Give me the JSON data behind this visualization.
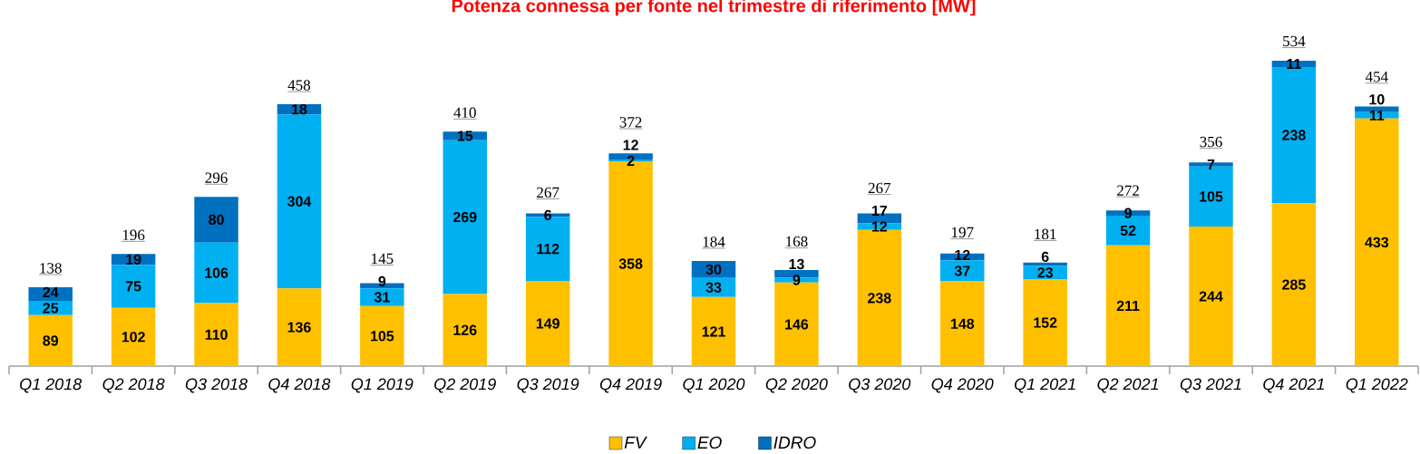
{
  "chart_data": {
    "type": "bar",
    "title": "Potenza connessa per fonte nel trimestre di riferimento [MW]",
    "categories": [
      "Q1 2018",
      "Q2 2018",
      "Q3 2018",
      "Q4 2018",
      "Q1 2019",
      "Q2 2019",
      "Q3 2019",
      "Q4 2019",
      "Q1 2020",
      "Q2 2020",
      "Q3 2020",
      "Q4 2020",
      "Q1 2021",
      "Q2 2021",
      "Q3 2021",
      "Q4 2021",
      "Q1 2022"
    ],
    "series": [
      {
        "name": "FV",
        "color": "#ffc000",
        "values": [
          89,
          102,
          110,
          136,
          105,
          126,
          149,
          358,
          121,
          146,
          238,
          148,
          152,
          211,
          244,
          285,
          433
        ]
      },
      {
        "name": "EO",
        "color": "#00b0f0",
        "values": [
          25,
          75,
          106,
          304,
          31,
          269,
          112,
          2,
          33,
          9,
          12,
          37,
          23,
          52,
          105,
          238,
          11
        ]
      },
      {
        "name": "IDRO",
        "color": "#0070c0",
        "values": [
          24,
          19,
          80,
          18,
          9,
          15,
          6,
          12,
          30,
          13,
          17,
          12,
          6,
          9,
          7,
          11,
          10
        ]
      }
    ],
    "stacked": true,
    "data_labels": true,
    "totals": [
      "138",
      "196",
      "296",
      "458",
      "145",
      "410",
      "267",
      "372",
      "184",
      "168",
      "267",
      "197",
      "181",
      "272",
      "356",
      "534",
      "454"
    ],
    "legend": "bottom"
  }
}
